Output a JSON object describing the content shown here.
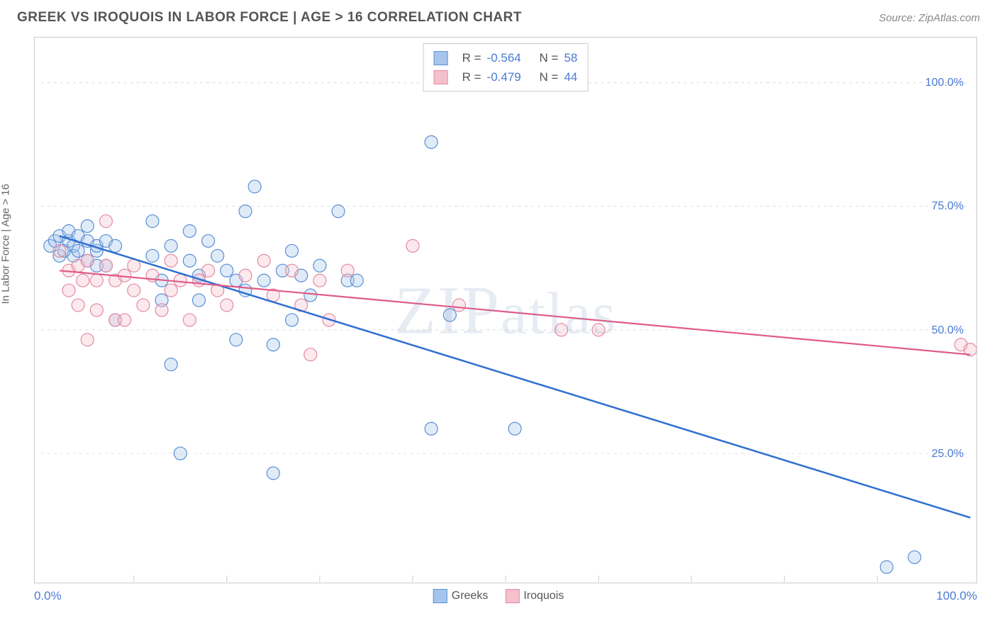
{
  "header": {
    "title": "GREEK VS IROQUOIS IN LABOR FORCE | AGE > 16 CORRELATION CHART",
    "source_prefix": "Source: ",
    "source_name": "ZipAtlas.com"
  },
  "watermark": {
    "text_pre": "ZIP",
    "text_post": "atlas"
  },
  "chart": {
    "type": "scatter",
    "y_axis_label": "In Labor Force | Age > 16",
    "xlim": [
      0,
      100
    ],
    "ylim": [
      0,
      108
    ],
    "x_ticks": [
      0,
      10,
      20,
      30,
      40,
      50,
      60,
      70,
      80,
      90,
      100
    ],
    "y_ticks": [
      25,
      50,
      75,
      100
    ],
    "y_tick_labels": [
      "25.0%",
      "50.0%",
      "75.0%",
      "100.0%"
    ],
    "x_axis_label_left": "0.0%",
    "x_axis_label_right": "100.0%",
    "grid_color": "#dddddd",
    "background_color": "#ffffff",
    "axis_text_color": "#4a7bd4",
    "marker_radius": 9,
    "marker_stroke_width": 1.2,
    "marker_fill_opacity": 0.35,
    "series": [
      {
        "name": "Greeks",
        "color_fill": "#a7c5ec",
        "color_stroke": "#5a8fd6",
        "line_color": "#2f6fd0",
        "line_width": 2.5,
        "R": "-0.564",
        "N": "58",
        "trend": {
          "x1": 2,
          "y1": 69,
          "x2": 100,
          "y2": 12
        },
        "points": [
          [
            1,
            67
          ],
          [
            1.5,
            68
          ],
          [
            2,
            69
          ],
          [
            2,
            65
          ],
          [
            2.5,
            66
          ],
          [
            3,
            68
          ],
          [
            3,
            70
          ],
          [
            3.5,
            67
          ],
          [
            3.5,
            65
          ],
          [
            4,
            69
          ],
          [
            4,
            66
          ],
          [
            5,
            68
          ],
          [
            5,
            64
          ],
          [
            5,
            71
          ],
          [
            6,
            66
          ],
          [
            6,
            67
          ],
          [
            6,
            63
          ],
          [
            7,
            68
          ],
          [
            7,
            63
          ],
          [
            8,
            52
          ],
          [
            8,
            67
          ],
          [
            12,
            65
          ],
          [
            12,
            72
          ],
          [
            13,
            60
          ],
          [
            13,
            56
          ],
          [
            14,
            43
          ],
          [
            14,
            67
          ],
          [
            15,
            25
          ],
          [
            16,
            64
          ],
          [
            16,
            70
          ],
          [
            17,
            61
          ],
          [
            17,
            56
          ],
          [
            18,
            68
          ],
          [
            19,
            65
          ],
          [
            20,
            62
          ],
          [
            21,
            60
          ],
          [
            21,
            48
          ],
          [
            22,
            58
          ],
          [
            22,
            74
          ],
          [
            23,
            79
          ],
          [
            24,
            60
          ],
          [
            25,
            47
          ],
          [
            25,
            21
          ],
          [
            26,
            62
          ],
          [
            27,
            52
          ],
          [
            27,
            66
          ],
          [
            28,
            61
          ],
          [
            29,
            57
          ],
          [
            30,
            63
          ],
          [
            32,
            74
          ],
          [
            33,
            60
          ],
          [
            34,
            60
          ],
          [
            42,
            30
          ],
          [
            42,
            88
          ],
          [
            44,
            53
          ],
          [
            51,
            30
          ],
          [
            91,
            2
          ],
          [
            94,
            4
          ]
        ]
      },
      {
        "name": "Iroquois",
        "color_fill": "#f4c0cd",
        "color_stroke": "#e48aa2",
        "line_color": "#e05a88",
        "line_width": 2.2,
        "R": "-0.479",
        "N": "44",
        "trend": {
          "x1": 2,
          "y1": 62,
          "x2": 100,
          "y2": 45
        },
        "points": [
          [
            2,
            66
          ],
          [
            3,
            62
          ],
          [
            3,
            58
          ],
          [
            4,
            63
          ],
          [
            4,
            55
          ],
          [
            4.5,
            60
          ],
          [
            5,
            64
          ],
          [
            5,
            48
          ],
          [
            6,
            60
          ],
          [
            6,
            54
          ],
          [
            7,
            63
          ],
          [
            7,
            72
          ],
          [
            8,
            60
          ],
          [
            8,
            52
          ],
          [
            9,
            52
          ],
          [
            9,
            61
          ],
          [
            10,
            58
          ],
          [
            10,
            63
          ],
          [
            11,
            55
          ],
          [
            12,
            61
          ],
          [
            13,
            54
          ],
          [
            14,
            64
          ],
          [
            14,
            58
          ],
          [
            15,
            60
          ],
          [
            16,
            52
          ],
          [
            17,
            60
          ],
          [
            18,
            62
          ],
          [
            19,
            58
          ],
          [
            20,
            55
          ],
          [
            22,
            61
          ],
          [
            24,
            64
          ],
          [
            25,
            57
          ],
          [
            27,
            62
          ],
          [
            28,
            55
          ],
          [
            29,
            45
          ],
          [
            30,
            60
          ],
          [
            31,
            52
          ],
          [
            33,
            62
          ],
          [
            40,
            67
          ],
          [
            45,
            55
          ],
          [
            56,
            50
          ],
          [
            60,
            50
          ],
          [
            99,
            47
          ],
          [
            100,
            46
          ]
        ]
      }
    ]
  },
  "bottom_legend": {
    "items": [
      {
        "label": "Greeks",
        "fill": "#a7c5ec",
        "stroke": "#5a8fd6"
      },
      {
        "label": "Iroquois",
        "fill": "#f4c0cd",
        "stroke": "#e48aa2"
      }
    ]
  }
}
